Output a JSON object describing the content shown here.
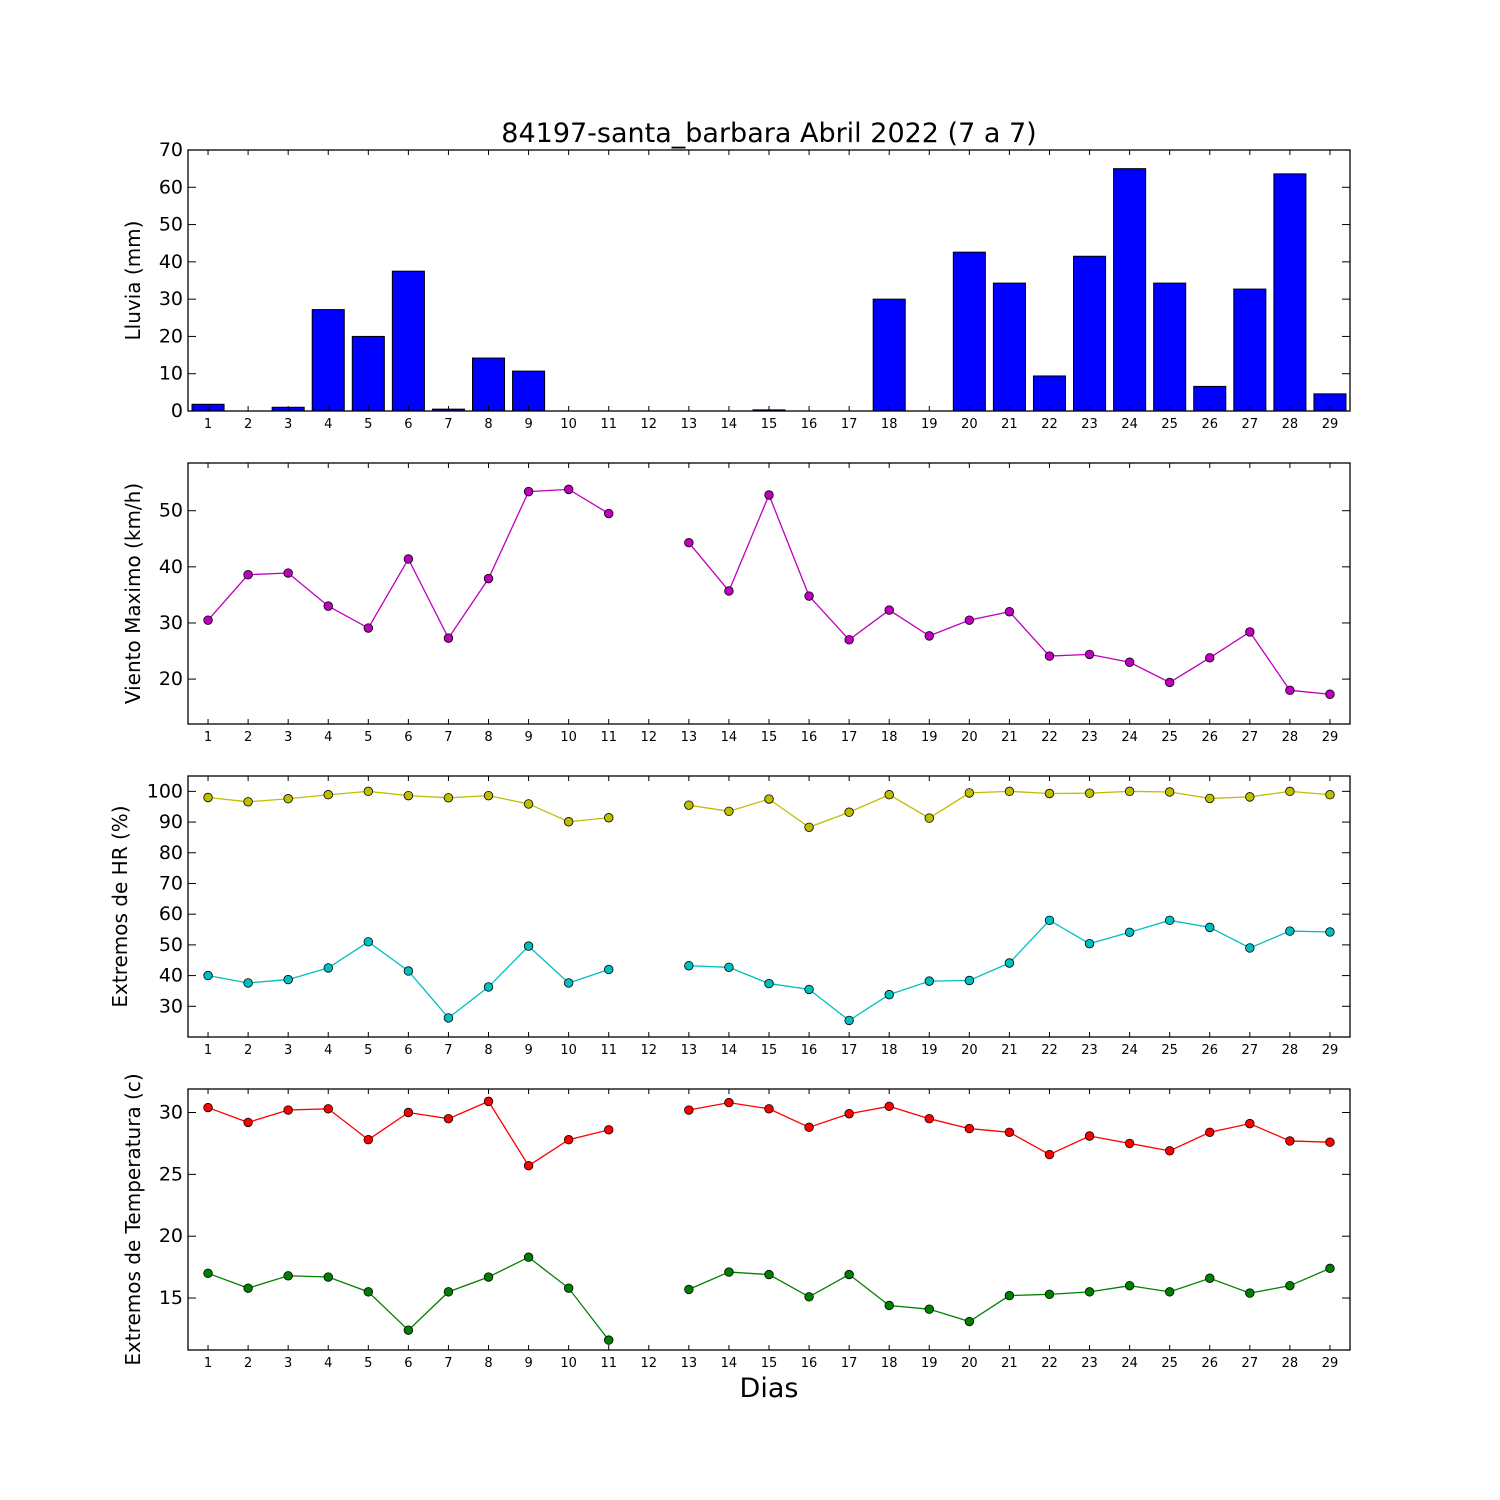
{
  "figure": {
    "title": "84197-santa_barbara Abril 2022  (7 a 7)",
    "xlabel": "Dias"
  },
  "chart_data": [
    {
      "type": "bar",
      "ylabel": "Lluvia (mm)",
      "ylim": [
        0,
        70
      ],
      "yticks": [
        0,
        10,
        20,
        30,
        40,
        50,
        60,
        70
      ],
      "categories": [
        1,
        2,
        3,
        4,
        5,
        6,
        7,
        8,
        9,
        10,
        11,
        12,
        13,
        14,
        15,
        16,
        17,
        18,
        19,
        20,
        21,
        22,
        23,
        24,
        25,
        26,
        27,
        28,
        29
      ],
      "series": [
        {
          "color": "#0000ff",
          "values": [
            1.8,
            0,
            1.0,
            27.2,
            20.0,
            37.5,
            0.5,
            14.2,
            10.7,
            0,
            0,
            0,
            0,
            0,
            0.3,
            0,
            0,
            30.0,
            0,
            42.6,
            34.3,
            9.4,
            41.5,
            65.0,
            34.3,
            6.6,
            32.7,
            63.6,
            4.6
          ]
        }
      ]
    },
    {
      "type": "line",
      "ylabel": "Viento Maximo (km/h)",
      "ylim": [
        12,
        58.5
      ],
      "yticks": [
        20,
        30,
        40,
        50
      ],
      "x": [
        1,
        2,
        3,
        4,
        5,
        6,
        7,
        8,
        9,
        10,
        11,
        12,
        13,
        14,
        15,
        16,
        17,
        18,
        19,
        20,
        21,
        22,
        23,
        24,
        25,
        26,
        27,
        28,
        29
      ],
      "series": [
        {
          "color": "#bf00bf",
          "values": [
            30.5,
            38.6,
            38.9,
            33.0,
            29.1,
            41.4,
            27.3,
            37.9,
            53.4,
            53.8,
            49.5,
            null,
            44.3,
            35.7,
            52.8,
            34.8,
            27.0,
            32.3,
            27.7,
            30.5,
            32.0,
            24.1,
            24.4,
            23.0,
            19.4,
            23.8,
            28.4,
            18.0,
            17.3
          ]
        }
      ]
    },
    {
      "type": "line",
      "ylabel": "Extremos de HR (%)",
      "ylim": [
        20,
        105
      ],
      "yticks": [
        30,
        40,
        50,
        60,
        70,
        80,
        90,
        100
      ],
      "x": [
        1,
        2,
        3,
        4,
        5,
        6,
        7,
        8,
        9,
        10,
        11,
        12,
        13,
        14,
        15,
        16,
        17,
        18,
        19,
        20,
        21,
        22,
        23,
        24,
        25,
        26,
        27,
        28,
        29
      ],
      "series": [
        {
          "color": "#bfbf00",
          "values": [
            98,
            96.6,
            97.6,
            98.9,
            100,
            98.6,
            97.9,
            98.6,
            95.9,
            90.1,
            91.4,
            null,
            95.5,
            93.5,
            97.5,
            88.3,
            93.2,
            98.9,
            91.3,
            99.5,
            100,
            99.3,
            99.4,
            100,
            99.8,
            97.7,
            98.2,
            100,
            98.9
          ]
        },
        {
          "color": "#00bfbf",
          "values": [
            40,
            37.6,
            38.7,
            42.5,
            51.0,
            41.5,
            26.2,
            36.3,
            49.6,
            37.6,
            42.0,
            null,
            43.2,
            42.7,
            37.4,
            35.5,
            25.4,
            33.8,
            38.2,
            38.4,
            44.1,
            58.0,
            50.4,
            54.1,
            58.0,
            55.7,
            49.0,
            54.5,
            54.2
          ]
        }
      ]
    },
    {
      "type": "line",
      "ylabel": "Extremos de Temperatura (c)",
      "ylim": [
        10.8,
        31.9
      ],
      "yticks": [
        15,
        20,
        25,
        30
      ],
      "x": [
        1,
        2,
        3,
        4,
        5,
        6,
        7,
        8,
        9,
        10,
        11,
        12,
        13,
        14,
        15,
        16,
        17,
        18,
        19,
        20,
        21,
        22,
        23,
        24,
        25,
        26,
        27,
        28,
        29
      ],
      "series": [
        {
          "color": "#ff0000",
          "values": [
            30.4,
            29.2,
            30.2,
            30.3,
            27.8,
            30.0,
            29.5,
            30.9,
            25.7,
            27.8,
            28.6,
            null,
            30.2,
            30.8,
            30.3,
            28.8,
            29.9,
            30.5,
            29.5,
            28.7,
            28.4,
            26.6,
            28.1,
            27.5,
            26.9,
            28.4,
            29.1,
            27.7,
            27.6
          ]
        },
        {
          "color": "#008000",
          "values": [
            17.0,
            15.8,
            16.8,
            16.7,
            15.5,
            12.4,
            15.5,
            16.7,
            18.3,
            15.8,
            11.6,
            null,
            15.7,
            17.1,
            16.9,
            15.1,
            16.9,
            14.4,
            14.1,
            13.1,
            15.2,
            15.3,
            15.5,
            16.0,
            15.5,
            16.6,
            15.4,
            16.0,
            17.4
          ]
        }
      ]
    }
  ]
}
